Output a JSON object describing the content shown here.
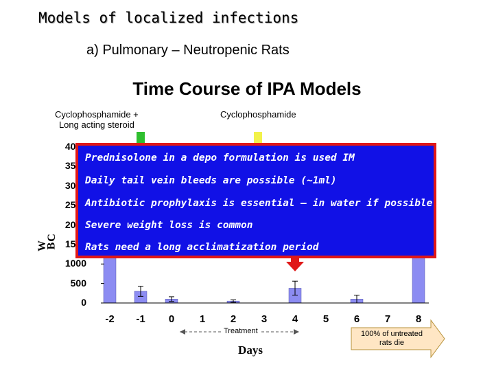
{
  "slide": {
    "title": "Models of localized infections",
    "subtitle": "a) Pulmonary – Neutropenic Rats"
  },
  "overlay": {
    "lines": [
      "Prednisolone in a depo formulation is used IM",
      "Daily tail vein bleeds are possible (~1ml)",
      "Antibiotic prophylaxis is essential – in water if possible",
      "Severe weight loss is common",
      "Rats need a long acclimatization period"
    ],
    "background_color": "#1111e6",
    "border_color": "#e01818"
  },
  "annotations": {
    "cyclo_steroid_line1": "Cyclophosphamide +",
    "cyclo_steroid_line2": "Long acting steroid",
    "cyclo": "Cyclophosphamide",
    "treatment": "Treatment",
    "death_line1": "100% of untreated",
    "death_line2": "rats die"
  },
  "chart_data": {
    "type": "bar",
    "title": "Time Course of IPA Models",
    "xlabel": "Days",
    "ylabel_fragments": [
      "W",
      "B",
      "C"
    ],
    "x_ticks": [
      "-2",
      "-1",
      "0",
      "1",
      "2",
      "3",
      "4",
      "5",
      "6",
      "7",
      "8"
    ],
    "y_ticks": [
      "0",
      "500",
      "1000",
      "1500",
      "2000",
      "2500",
      "3000",
      "3500",
      "4000"
    ],
    "ylim": [
      0,
      4000
    ],
    "categories": [
      "-2",
      "-1",
      "0",
      "2",
      "4",
      "6",
      "8"
    ],
    "values": [
      4000,
      300,
      100,
      50,
      380,
      100,
      4000
    ],
    "errors": [
      0,
      130,
      60,
      30,
      180,
      100,
      0
    ],
    "bar_color": "#8c8cf2",
    "markers": [
      {
        "day": "-1",
        "color": "#2fbf2f"
      },
      {
        "day": "2.8",
        "color": "#f2f24a"
      }
    ],
    "arrow_color": "#e01818"
  }
}
